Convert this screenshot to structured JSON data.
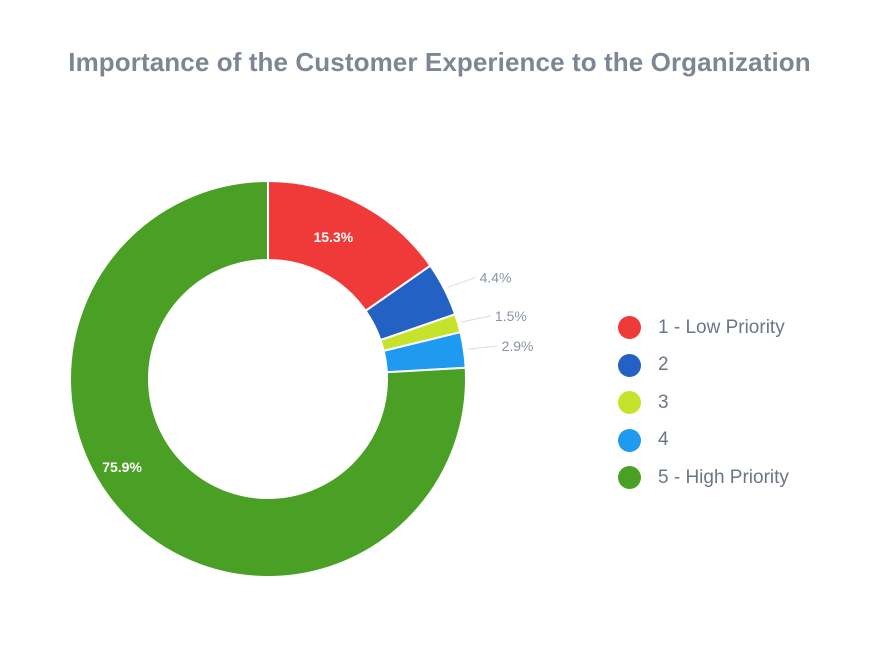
{
  "chart_data": {
    "type": "pie",
    "title": "Importance of the Customer Experience to the Organization",
    "donut": true,
    "legend_position": "right",
    "categories": [
      "1 - Low Priority",
      "2",
      "3",
      "4",
      "5 - High Priority"
    ],
    "values": [
      15.3,
      4.4,
      1.5,
      2.9,
      75.9
    ],
    "value_labels": [
      "15.3%",
      "4.4%",
      "1.5%",
      "2.9%",
      "75.9%"
    ],
    "colors": [
      "#f03a3a",
      "#2361c4",
      "#c6e22a",
      "#1e9bf0",
      "#4a9f25"
    ]
  }
}
